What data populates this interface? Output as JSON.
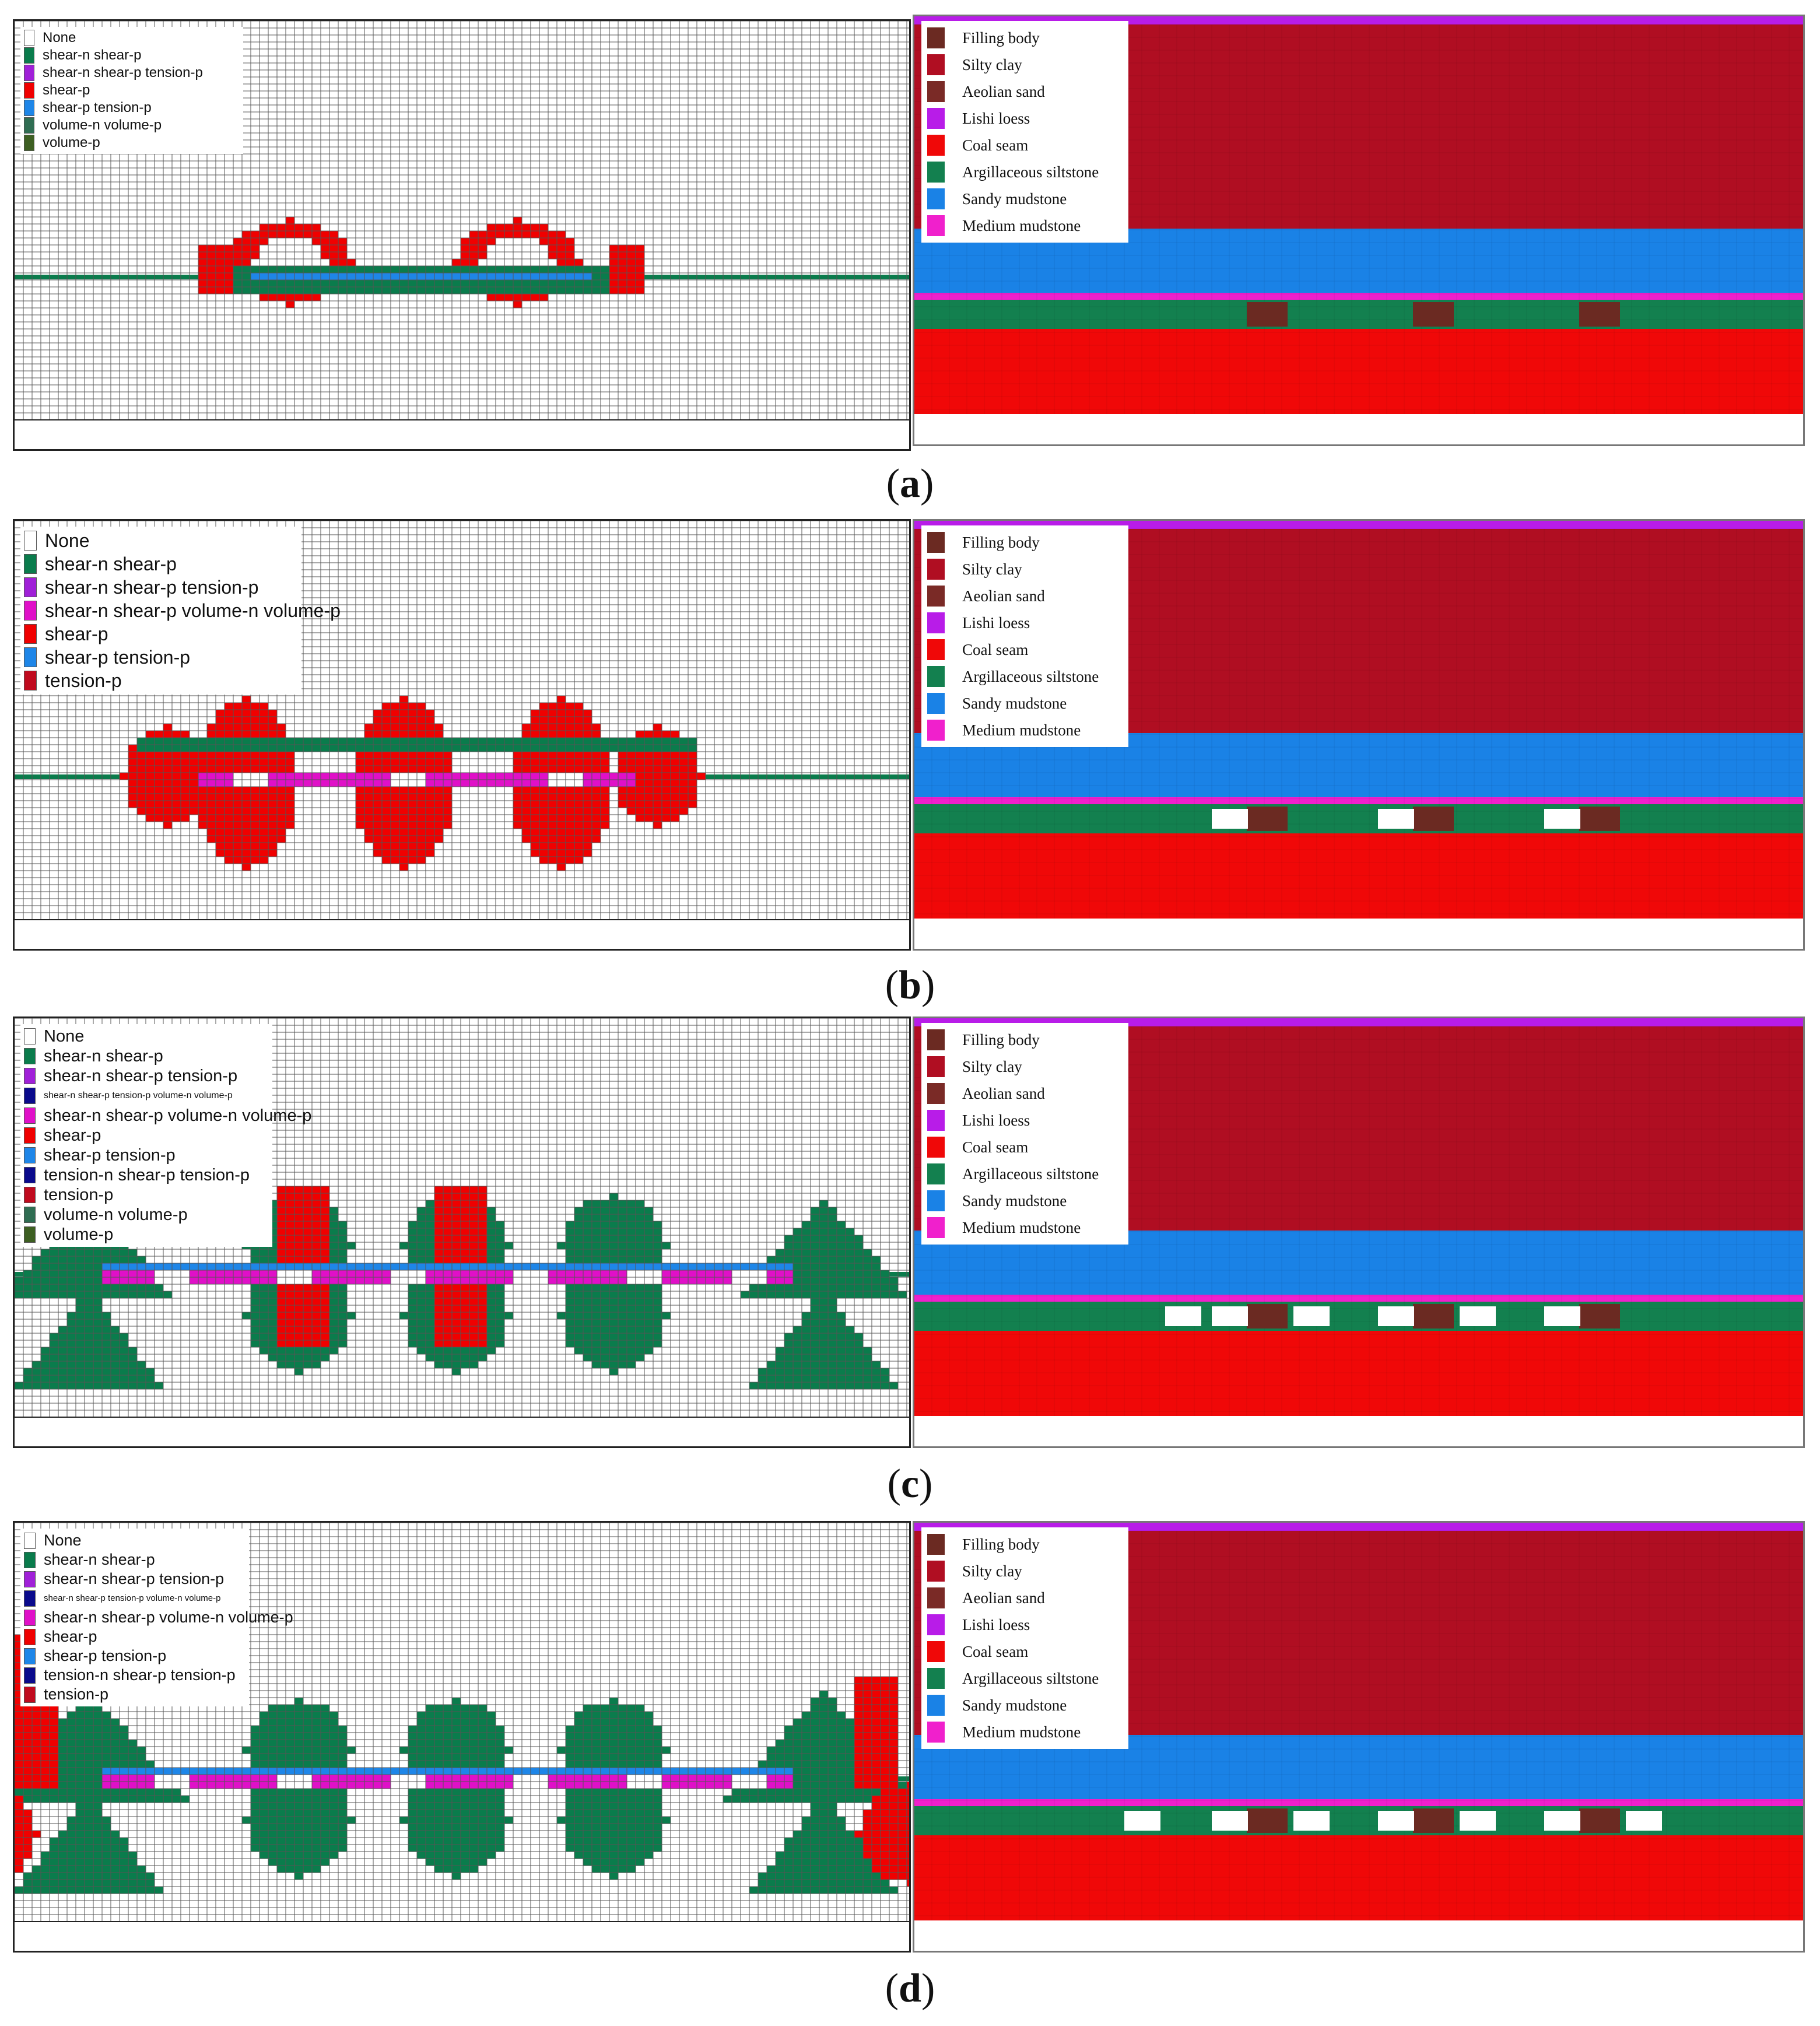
{
  "colors": {
    "none": "#ffffff",
    "shear_n_shear_p": "#0a7c4c",
    "shear_n_shear_p_tension_p": "#a020d8",
    "shear_p": "#f00000",
    "shear_p_tension_p": "#1e86e8",
    "volume_n_volume_p": "#2f6d52",
    "volume_p": "#3d5f22",
    "tension_p": "#c00a1e",
    "mixed": "#e010c8",
    "tension_n_shear_p_tension_p": "#0a0a8c",
    "filling_body": "#6b2a22",
    "silty_clay": "#b00e22",
    "aeolian_sand": "#7a2a26",
    "lishi_loess": "#b81ce8",
    "coal_seam": "#f00808",
    "argillaceous_siltstone": "#13804f",
    "sandy_mudstone": "#1a82e6",
    "medium_mudstone": "#f020cc",
    "void": "#ffffff"
  },
  "rock_legend": [
    {
      "label": "Filling body",
      "color": "#6b2a22"
    },
    {
      "label": "Silty clay",
      "color": "#b00e22"
    },
    {
      "label": "Aeolian sand",
      "color": "#7a2a26"
    },
    {
      "label": "Lishi loess",
      "color": "#b81ce8"
    },
    {
      "label": "Coal seam",
      "color": "#f00808"
    },
    {
      "label": "Argillaceous siltstone",
      "color": "#13804f"
    },
    {
      "label": "Sandy mudstone",
      "color": "#1a82e6"
    },
    {
      "label": "Medium mudstone",
      "color": "#f020cc"
    }
  ],
  "panels": [
    {
      "caption": "a",
      "legend": [
        {
          "label": "None",
          "color": "#ffffff"
        },
        {
          "label": "shear-n shear-p",
          "color": "#0a7c4c"
        },
        {
          "label": "shear-n shear-p tension-p",
          "color": "#a020d8"
        },
        {
          "label": "shear-p",
          "color": "#f00000"
        },
        {
          "label": "shear-p tension-p",
          "color": "#1e86e8"
        },
        {
          "label": "volume-n volume-p",
          "color": "#2f6d52"
        },
        {
          "label": "volume-p",
          "color": "#3d5f22"
        }
      ]
    },
    {
      "caption": "b",
      "legend": [
        {
          "label": "None",
          "color": "#ffffff"
        },
        {
          "label": "shear-n shear-p",
          "color": "#0a7c4c"
        },
        {
          "label": "shear-n shear-p tension-p",
          "color": "#a020d8"
        },
        {
          "label": "shear-n shear-p volume-n volume-p",
          "color": "#e010c8"
        },
        {
          "label": "shear-p",
          "color": "#f00000"
        },
        {
          "label": "shear-p tension-p",
          "color": "#1e86e8"
        },
        {
          "label": "tension-p",
          "color": "#c00a1e"
        }
      ]
    },
    {
      "caption": "c",
      "legend": [
        {
          "label": "None",
          "color": "#ffffff"
        },
        {
          "label": "shear-n shear-p",
          "color": "#0a7c4c"
        },
        {
          "label": "shear-n shear-p tension-p",
          "color": "#a020d8"
        },
        {
          "label": "shear-n shear-p tension-p volume-n volume-p",
          "color": "#0a0a8c"
        },
        {
          "label": "shear-n shear-p volume-n volume-p",
          "color": "#e010c8"
        },
        {
          "label": "shear-p",
          "color": "#f00000"
        },
        {
          "label": "shear-p tension-p",
          "color": "#1e86e8"
        },
        {
          "label": "tension-n shear-p tension-p",
          "color": "#0a0a8c"
        },
        {
          "label": "tension-p",
          "color": "#c00a1e"
        },
        {
          "label": "volume-n volume-p",
          "color": "#2f6d52"
        },
        {
          "label": "volume-p",
          "color": "#3d5f22"
        }
      ]
    },
    {
      "caption": "d",
      "legend": [
        {
          "label": "None",
          "color": "#ffffff"
        },
        {
          "label": "shear-n shear-p",
          "color": "#0a7c4c"
        },
        {
          "label": "shear-n shear-p tension-p",
          "color": "#a020d8"
        },
        {
          "label": "shear-n shear-p tension-p volume-n volume-p",
          "color": "#0a0a8c"
        },
        {
          "label": "shear-n shear-p volume-n volume-p",
          "color": "#e010c8"
        },
        {
          "label": "shear-p",
          "color": "#f00000"
        },
        {
          "label": "shear-p tension-p",
          "color": "#1e86e8"
        },
        {
          "label": "tension-n shear-p tension-p",
          "color": "#0a0a8c"
        },
        {
          "label": "tension-p",
          "color": "#c00a1e"
        }
      ]
    }
  ]
}
